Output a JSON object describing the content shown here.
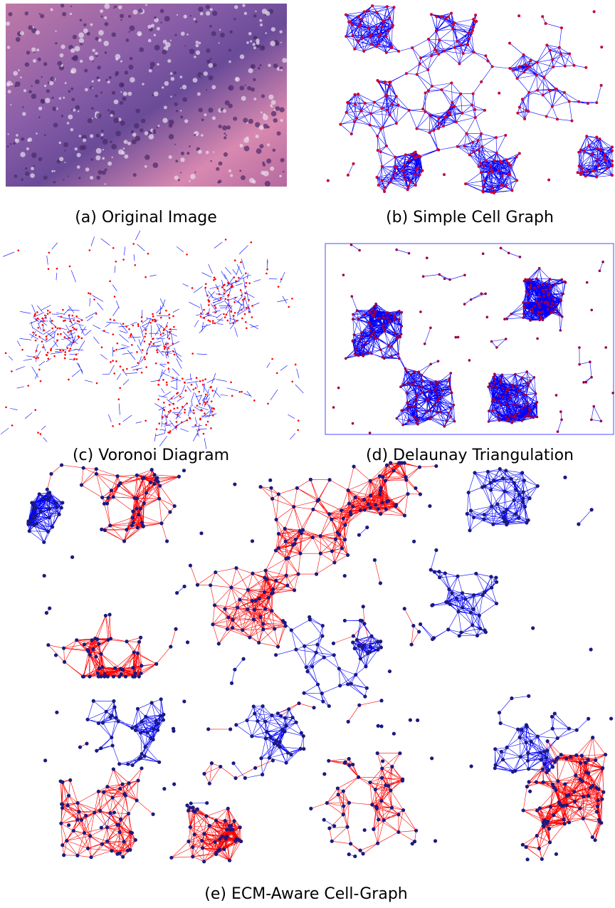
{
  "figure": {
    "panels": [
      {
        "caption": "(a) Original Image"
      },
      {
        "caption": "(b) Simple Cell Graph"
      },
      {
        "caption": "(c) Voronoi Diagram"
      },
      {
        "caption": "(d) Delaunay Triangulation"
      },
      {
        "caption": "(e) ECM-Aware Cell-Graph"
      }
    ]
  }
}
